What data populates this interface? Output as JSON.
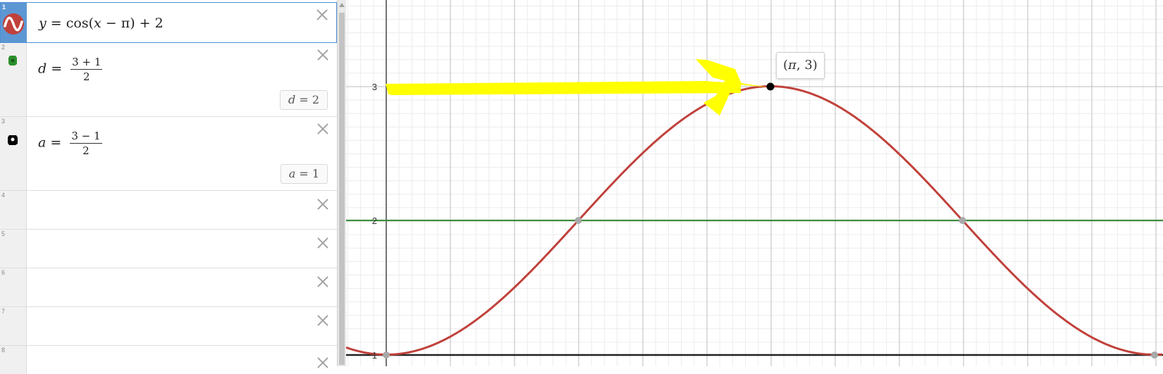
{
  "expressions": [
    {
      "number": "1",
      "icon": "sine-wave-icon",
      "color": "#c0413b",
      "latex_parts": [
        "y",
        " = cos(",
        "x",
        " − π) + 2"
      ]
    },
    {
      "number": "2",
      "icon": "green-color-swatch-icon",
      "color": "#2d8f2d",
      "variable": "d",
      "numerator": "3 + 1",
      "denominator": "2",
      "result_var": "d",
      "result_value": "2"
    },
    {
      "number": "3",
      "icon": "black-color-swatch-icon",
      "color": "#000000",
      "variable": "a",
      "numerator": "3 − 1",
      "denominator": "2",
      "result_var": "a",
      "result_value": "1"
    },
    {
      "number": "4"
    },
    {
      "number": "5"
    },
    {
      "number": "6"
    },
    {
      "number": "7"
    },
    {
      "number": "8"
    }
  ],
  "graph": {
    "y_tick_labels": [
      "3",
      "2",
      "1"
    ],
    "point_label": {
      "before": "(",
      "pi": "π",
      "after": ", 3)"
    },
    "colors": {
      "curve": "#c0413b",
      "line_d": "#3f8c3f",
      "line_a": "#222222",
      "arrow": "#ffff00",
      "point": "#000000",
      "intercepts": "#a8a8a8"
    }
  }
}
